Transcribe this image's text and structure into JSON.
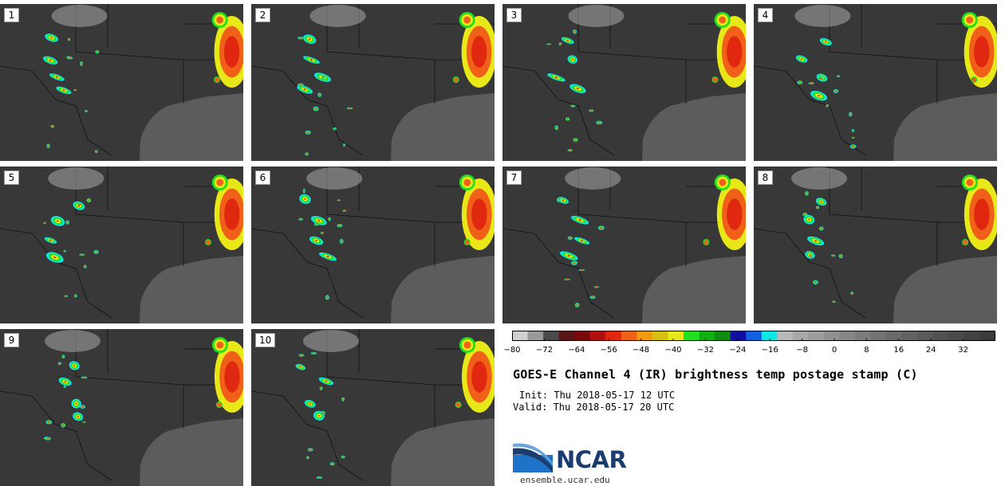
{
  "panels": [
    {
      "label": "1"
    },
    {
      "label": "2"
    },
    {
      "label": "3"
    },
    {
      "label": "4"
    },
    {
      "label": "5"
    },
    {
      "label": "6"
    },
    {
      "label": "7"
    },
    {
      "label": "8"
    },
    {
      "label": "9"
    },
    {
      "label": "10"
    }
  ],
  "colorbar": {
    "colors": [
      "#cfcfcf",
      "#9a9a9a",
      "#4a4a4a",
      "#5a1414",
      "#7a0a0a",
      "#b01010",
      "#e02810",
      "#f06018",
      "#f09a10",
      "#d8c010",
      "#e8e818",
      "#20e020",
      "#10b010",
      "#108a10",
      "#1010a0",
      "#1060e0",
      "#10e8e8",
      "#b8b8b8",
      "#a8a8a8",
      "#9c9c9c",
      "#909090",
      "#868686",
      "#7c7c7c",
      "#727272",
      "#6a6a6a",
      "#626262",
      "#5a5a5a",
      "#525252",
      "#4a4a4a",
      "#424242",
      "#3a3a3a"
    ],
    "ticks": [
      "−80",
      "−72",
      "−64",
      "−56",
      "−48",
      "−40",
      "−32",
      "−24",
      "−16",
      "−8",
      "0",
      "8",
      "16",
      "24",
      "32"
    ],
    "tick_values": [
      -80,
      -72,
      -64,
      -56,
      -48,
      -40,
      -32,
      -24,
      -16,
      -8,
      0,
      8,
      16,
      24,
      32
    ],
    "min": -80,
    "max": 40
  },
  "title": "GOES-E Channel 4 (IR) brightness temp postage stamp (C)",
  "init": "Init: Thu 2018-05-17 12 UTC",
  "valid": "Valid: Thu 2018-05-17 20 UTC",
  "logo": {
    "text": "NCAR",
    "url": "ensemble.ucar.edu",
    "brand_color": "#1a3c6e"
  }
}
